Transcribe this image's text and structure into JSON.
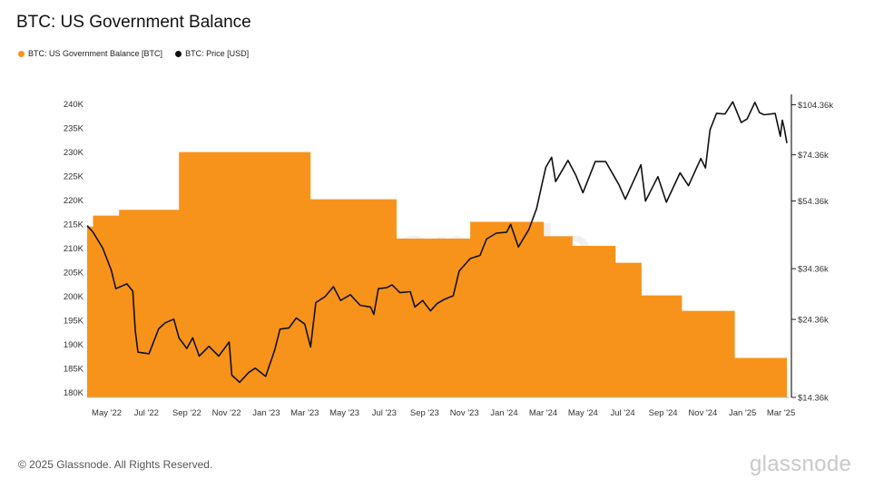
{
  "title": "BTC: US Government Balance",
  "footer": "© 2025 Glassnode. All Rights Reserved.",
  "brand": "glassnode",
  "watermark": "glassnode",
  "legend": [
    {
      "label": "BTC: US Government Balance [BTC]",
      "color": "#f7931a"
    },
    {
      "label": "BTC: Price [USD]",
      "color": "#111111"
    }
  ],
  "chart_data": {
    "type": "area",
    "x_range": [
      "2022-04-01",
      "2025-03-10"
    ],
    "x_ticks": [
      "May '22",
      "Jul '22",
      "Sep '22",
      "Nov '22",
      "Jan '23",
      "Mar '23",
      "May '23",
      "Jul '23",
      "Sep '23",
      "Nov '23",
      "Jan '24",
      "Mar '24",
      "May '24",
      "Jul '24",
      "Sep '24",
      "Nov '24",
      "Jan '25",
      "Mar '25"
    ],
    "y_left": {
      "min": 179000,
      "max": 242000,
      "ticks": [
        180000,
        185000,
        190000,
        195000,
        200000,
        205000,
        210000,
        215000,
        220000,
        225000,
        230000,
        235000,
        240000
      ],
      "tick_labels": [
        "180K",
        "185K",
        "190K",
        "195K",
        "200K",
        "205K",
        "210K",
        "215K",
        "220K",
        "225K",
        "230K",
        "235K",
        "240K"
      ]
    },
    "y_right": {
      "scale": "log",
      "min": 14360,
      "max": 112000,
      "ticks": [
        14360,
        24360,
        34360,
        54360,
        74360,
        104360
      ],
      "tick_labels": [
        "$14.36k",
        "$24.36k",
        "$34.36k",
        "$54.36k",
        "$74.36k",
        "$104.36k"
      ]
    },
    "series": [
      {
        "name": "BTC: US Government Balance [BTC]",
        "type": "step-area",
        "color": "#f7931a",
        "x": [
          "2022-04-01",
          "2022-04-10",
          "2022-05-20",
          "2022-08-20",
          "2023-03-10",
          "2023-07-20",
          "2023-11-10",
          "2024-03-02",
          "2024-04-15",
          "2024-06-20",
          "2024-07-30",
          "2024-09-30",
          "2024-12-20",
          "2025-03-10"
        ],
        "values": [
          214500,
          216800,
          218000,
          230000,
          220200,
          212000,
          215500,
          212500,
          210500,
          207000,
          200200,
          197000,
          187200,
          187200
        ]
      },
      {
        "name": "BTC: Price [USD]",
        "type": "line",
        "color": "#111111",
        "x": [
          "2022-04-01",
          "2022-04-10",
          "2022-04-25",
          "2022-05-08",
          "2022-05-15",
          "2022-06-01",
          "2022-06-10",
          "2022-06-14",
          "2022-06-18",
          "2022-07-05",
          "2022-07-20",
          "2022-07-30",
          "2022-08-12",
          "2022-08-20",
          "2022-09-01",
          "2022-09-10",
          "2022-09-20",
          "2022-10-05",
          "2022-10-20",
          "2022-11-05",
          "2022-11-09",
          "2022-11-21",
          "2022-12-05",
          "2022-12-15",
          "2022-12-31",
          "2023-01-14",
          "2023-01-22",
          "2023-02-05",
          "2023-02-16",
          "2023-03-01",
          "2023-03-10",
          "2023-03-18",
          "2023-04-01",
          "2023-04-14",
          "2023-04-25",
          "2023-05-10",
          "2023-05-25",
          "2023-06-10",
          "2023-06-15",
          "2023-06-22",
          "2023-07-05",
          "2023-07-13",
          "2023-07-25",
          "2023-08-10",
          "2023-08-17",
          "2023-08-29",
          "2023-09-10",
          "2023-09-20",
          "2023-10-01",
          "2023-10-15",
          "2023-10-24",
          "2023-11-10",
          "2023-11-25",
          "2023-12-05",
          "2023-12-20",
          "2024-01-05",
          "2024-01-11",
          "2024-01-23",
          "2024-02-08",
          "2024-02-20",
          "2024-02-28",
          "2024-03-05",
          "2024-03-14",
          "2024-03-20",
          "2024-04-08",
          "2024-04-20",
          "2024-05-01",
          "2024-05-20",
          "2024-06-05",
          "2024-06-25",
          "2024-07-05",
          "2024-07-29",
          "2024-08-05",
          "2024-08-24",
          "2024-09-06",
          "2024-09-27",
          "2024-10-10",
          "2024-10-29",
          "2024-11-05",
          "2024-11-12",
          "2024-11-22",
          "2024-12-05",
          "2024-12-17",
          "2024-12-30",
          "2025-01-08",
          "2025-01-20",
          "2025-01-27",
          "2025-02-03",
          "2025-02-20",
          "2025-02-28",
          "2025-03-03",
          "2025-03-06",
          "2025-03-10"
        ],
        "values": [
          46000,
          44000,
          39500,
          34000,
          30000,
          31000,
          29500,
          22500,
          19500,
          19300,
          22900,
          23800,
          24400,
          21500,
          20000,
          21500,
          19000,
          20300,
          19000,
          20900,
          16700,
          15900,
          17000,
          17500,
          16550,
          19800,
          22800,
          23000,
          24600,
          23600,
          20200,
          27300,
          28400,
          30400,
          27700,
          28800,
          26800,
          26500,
          25200,
          30000,
          30200,
          30800,
          29200,
          29400,
          26500,
          27700,
          25800,
          27100,
          27900,
          28600,
          33800,
          36800,
          37600,
          42000,
          43700,
          44000,
          46400,
          39800,
          44800,
          51700,
          60800,
          68300,
          73100,
          62000,
          71600,
          64800,
          57500,
          71000,
          71000,
          60800,
          55000,
          69500,
          54300,
          64100,
          53900,
          65800,
          60300,
          72500,
          68000,
          88000,
          98500,
          98000,
          106500,
          92500,
          94800,
          106100,
          99000,
          97500,
          98400,
          84300,
          94000,
          89000,
          80500
        ]
      }
    ]
  }
}
